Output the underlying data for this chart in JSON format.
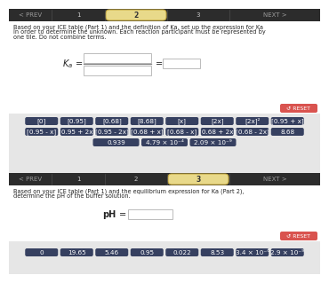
{
  "nav_bg_top": "#2c2c2c",
  "nav_bg_bot": "#1e1e2e",
  "active_tab_fill": "#e8d98a",
  "active_tab_edge": "#c4a840",
  "nav_labels": [
    "< PREV",
    "1",
    "2",
    "3",
    "NEXT >"
  ],
  "section_bg": "#ffffff",
  "grey_bg": "#e6e6e6",
  "tile_bg": "#364060",
  "tile_fg": "#ffffff",
  "tile_fontsize": 5.2,
  "reset_bg": "#d9534f",
  "reset_fg": "#ffffff",
  "reset_label": "↺ RESET",
  "text_color": "#222222",
  "box_edge": "#bbbbbb",
  "s1_line1": "Based on your ICE table (Part 1) and the definition of Ka, set up the expression for Ka",
  "s1_line2": "in order to determine the unknown. Each reaction participant must be represented by",
  "s1_line3": "one tile. Do not combine terms.",
  "s2_line1": "Based on your ICE table (Part 1) and the equilibrium expression for Ka (Part 2),",
  "s2_line2": "determine the pH of the buffer solution.",
  "tiles_r1": [
    "[0]",
    "[0.95]",
    "[0.68]",
    "[8.68]",
    "[x]",
    "[2x]",
    "[2x]²",
    "[0.95 + x]"
  ],
  "tiles_r2": [
    "[0.95 - x]",
    "[0.95 + 2x]",
    "[0.95 - 2x]",
    "[0.68 + x]",
    "[0.68 - x]",
    "[0.68 + 2x]",
    "[0.68 - 2x]",
    "8.68"
  ],
  "tiles_r3": [
    "0.939",
    "4.79 × 10⁻⁴",
    "2.09 × 10⁻⁹"
  ],
  "tiles_bot": [
    "0",
    "19.65",
    "5.46",
    "0.95",
    "0.022",
    "8.53",
    "3.4 × 10⁻⁶",
    "2.9 × 10⁻⁹"
  ]
}
